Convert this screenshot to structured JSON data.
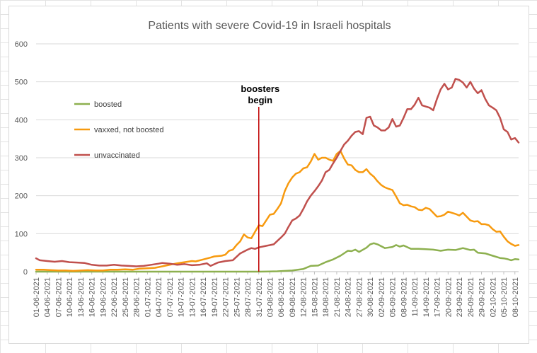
{
  "colors": {
    "boosted": "#8db04f",
    "vaxxed": "#f79a0f",
    "unvaccinated": "#c0504d",
    "annotation_line": "#c00000",
    "gridline": "#d9d9d9",
    "axis": "#bfbfbf"
  },
  "chart_data": {
    "type": "line",
    "title": "Patients with severe Covid-19 in Israeli hospitals",
    "xlabel": "",
    "ylabel": "",
    "ylim": [
      0,
      600
    ],
    "yticks": [
      0,
      100,
      200,
      300,
      400,
      500,
      600
    ],
    "grid": "horizontal",
    "legend_placement": "left-inside",
    "x_start": "01-06-2021",
    "x_end": "09-10-2021",
    "x_tick_labels": [
      "01-06-2021",
      "04-06-2021",
      "07-06-2021",
      "10-06-2021",
      "13-06-2021",
      "16-06-2021",
      "19-06-2021",
      "22-06-2021",
      "25-06-2021",
      "28-06-2021",
      "01-07-2021",
      "04-07-2021",
      "07-07-2021",
      "10-07-2021",
      "13-07-2021",
      "16-07-2021",
      "19-07-2021",
      "22-07-2021",
      "25-07-2021",
      "28-07-2021",
      "31-07-2021",
      "03-08-2021",
      "06-08-2021",
      "09-08-2021",
      "12-08-2021",
      "15-08-2021",
      "18-08-2021",
      "21-08-2021",
      "24-08-2021",
      "27-08-2021",
      "30-08-2021",
      "02-09-2021",
      "05-09-2021",
      "08-09-2021",
      "11-09-2021",
      "14-09-2021",
      "17-09-2021",
      "20-09-2021",
      "23-09-2021",
      "26-09-2021",
      "29-09-2021",
      "02-10-2021",
      "05-10-2021",
      "08-10-2021"
    ],
    "annotation": {
      "date": "31-07-2021",
      "text_line1": "boosters",
      "text_line2": "begin"
    },
    "series": [
      {
        "name": "boosted",
        "points": [
          [
            "01-06-2021",
            0
          ],
          [
            "31-07-2021",
            0
          ],
          [
            "05-08-2021",
            1
          ],
          [
            "09-08-2021",
            3
          ],
          [
            "12-08-2021",
            7
          ],
          [
            "14-08-2021",
            15
          ],
          [
            "16-08-2021",
            16
          ],
          [
            "18-08-2021",
            25
          ],
          [
            "20-08-2021",
            32
          ],
          [
            "22-08-2021",
            42
          ],
          [
            "24-08-2021",
            55
          ],
          [
            "25-08-2021",
            54
          ],
          [
            "26-08-2021",
            58
          ],
          [
            "27-08-2021",
            52
          ],
          [
            "29-08-2021",
            63
          ],
          [
            "30-08-2021",
            72
          ],
          [
            "31-08-2021",
            75
          ],
          [
            "01-09-2021",
            72
          ],
          [
            "03-09-2021",
            62
          ],
          [
            "05-09-2021",
            65
          ],
          [
            "06-09-2021",
            70
          ],
          [
            "07-09-2021",
            66
          ],
          [
            "08-09-2021",
            69
          ],
          [
            "10-09-2021",
            60
          ],
          [
            "12-09-2021",
            60
          ],
          [
            "14-09-2021",
            59
          ],
          [
            "16-09-2021",
            58
          ],
          [
            "18-09-2021",
            55
          ],
          [
            "20-09-2021",
            58
          ],
          [
            "22-09-2021",
            57
          ],
          [
            "24-09-2021",
            62
          ],
          [
            "26-09-2021",
            57
          ],
          [
            "27-09-2021",
            58
          ],
          [
            "28-09-2021",
            50
          ],
          [
            "30-09-2021",
            48
          ],
          [
            "02-10-2021",
            42
          ],
          [
            "04-10-2021",
            36
          ],
          [
            "05-10-2021",
            35
          ],
          [
            "06-10-2021",
            33
          ],
          [
            "07-10-2021",
            30
          ],
          [
            "08-10-2021",
            33
          ],
          [
            "09-10-2021",
            32
          ]
        ]
      },
      {
        "name": "vaxxed, not boosted",
        "points": [
          [
            "01-06-2021",
            5
          ],
          [
            "03-06-2021",
            5
          ],
          [
            "05-06-2021",
            4
          ],
          [
            "07-06-2021",
            3
          ],
          [
            "09-06-2021",
            3
          ],
          [
            "11-06-2021",
            2
          ],
          [
            "13-06-2021",
            3
          ],
          [
            "15-06-2021",
            4
          ],
          [
            "17-06-2021",
            3
          ],
          [
            "19-06-2021",
            3
          ],
          [
            "21-06-2021",
            5
          ],
          [
            "23-06-2021",
            5
          ],
          [
            "25-06-2021",
            6
          ],
          [
            "27-06-2021",
            5
          ],
          [
            "29-06-2021",
            8
          ],
          [
            "01-07-2021",
            9
          ],
          [
            "03-07-2021",
            10
          ],
          [
            "05-07-2021",
            14
          ],
          [
            "07-07-2021",
            18
          ],
          [
            "09-07-2021",
            22
          ],
          [
            "11-07-2021",
            25
          ],
          [
            "13-07-2021",
            28
          ],
          [
            "14-07-2021",
            27
          ],
          [
            "16-07-2021",
            32
          ],
          [
            "18-07-2021",
            37
          ],
          [
            "19-07-2021",
            40
          ],
          [
            "21-07-2021",
            42
          ],
          [
            "22-07-2021",
            45
          ],
          [
            "23-07-2021",
            55
          ],
          [
            "24-07-2021",
            58
          ],
          [
            "25-07-2021",
            70
          ],
          [
            "26-07-2021",
            80
          ],
          [
            "27-07-2021",
            98
          ],
          [
            "28-07-2021",
            90
          ],
          [
            "29-07-2021",
            88
          ],
          [
            "30-07-2021",
            105
          ],
          [
            "31-07-2021",
            122
          ],
          [
            "01-08-2021",
            120
          ],
          [
            "02-08-2021",
            135
          ],
          [
            "03-08-2021",
            150
          ],
          [
            "04-08-2021",
            152
          ],
          [
            "05-08-2021",
            165
          ],
          [
            "06-08-2021",
            180
          ],
          [
            "07-08-2021",
            212
          ],
          [
            "08-08-2021",
            233
          ],
          [
            "09-08-2021",
            248
          ],
          [
            "10-08-2021",
            258
          ],
          [
            "11-08-2021",
            262
          ],
          [
            "12-08-2021",
            272
          ],
          [
            "13-08-2021",
            275
          ],
          [
            "14-08-2021",
            290
          ],
          [
            "15-08-2021",
            310
          ],
          [
            "16-08-2021",
            295
          ],
          [
            "17-08-2021",
            300
          ],
          [
            "18-08-2021",
            300
          ],
          [
            "19-08-2021",
            295
          ],
          [
            "20-08-2021",
            292
          ],
          [
            "21-08-2021",
            310
          ],
          [
            "22-08-2021",
            318
          ],
          [
            "23-08-2021",
            298
          ],
          [
            "24-08-2021",
            282
          ],
          [
            "25-08-2021",
            280
          ],
          [
            "26-08-2021",
            268
          ],
          [
            "27-08-2021",
            262
          ],
          [
            "28-08-2021",
            262
          ],
          [
            "29-08-2021",
            270
          ],
          [
            "30-08-2021",
            258
          ],
          [
            "31-08-2021",
            250
          ],
          [
            "01-09-2021",
            238
          ],
          [
            "02-09-2021",
            228
          ],
          [
            "03-09-2021",
            222
          ],
          [
            "04-09-2021",
            218
          ],
          [
            "05-09-2021",
            215
          ],
          [
            "06-09-2021",
            198
          ],
          [
            "07-09-2021",
            180
          ],
          [
            "08-09-2021",
            175
          ],
          [
            "09-09-2021",
            176
          ],
          [
            "10-09-2021",
            172
          ],
          [
            "11-09-2021",
            170
          ],
          [
            "12-09-2021",
            163
          ],
          [
            "13-09-2021",
            162
          ],
          [
            "14-09-2021",
            168
          ],
          [
            "15-09-2021",
            165
          ],
          [
            "16-09-2021",
            155
          ],
          [
            "17-09-2021",
            145
          ],
          [
            "18-09-2021",
            146
          ],
          [
            "19-09-2021",
            150
          ],
          [
            "20-09-2021",
            158
          ],
          [
            "21-09-2021",
            155
          ],
          [
            "22-09-2021",
            152
          ],
          [
            "23-09-2021",
            148
          ],
          [
            "24-09-2021",
            155
          ],
          [
            "25-09-2021",
            145
          ],
          [
            "26-09-2021",
            135
          ],
          [
            "27-09-2021",
            132
          ],
          [
            "28-09-2021",
            133
          ],
          [
            "29-09-2021",
            125
          ],
          [
            "30-09-2021",
            125
          ],
          [
            "01-10-2021",
            122
          ],
          [
            "02-10-2021",
            112
          ],
          [
            "03-10-2021",
            105
          ],
          [
            "04-10-2021",
            106
          ],
          [
            "05-10-2021",
            92
          ],
          [
            "06-10-2021",
            80
          ],
          [
            "07-10-2021",
            73
          ],
          [
            "08-10-2021",
            68
          ],
          [
            "09-10-2021",
            70
          ]
        ]
      },
      {
        "name": "unvaccinated",
        "points": [
          [
            "01-06-2021",
            35
          ],
          [
            "02-06-2021",
            30
          ],
          [
            "04-06-2021",
            28
          ],
          [
            "06-06-2021",
            26
          ],
          [
            "08-06-2021",
            28
          ],
          [
            "10-06-2021",
            25
          ],
          [
            "12-06-2021",
            24
          ],
          [
            "14-06-2021",
            23
          ],
          [
            "16-06-2021",
            18
          ],
          [
            "18-06-2021",
            16
          ],
          [
            "20-06-2021",
            16
          ],
          [
            "22-06-2021",
            18
          ],
          [
            "24-06-2021",
            16
          ],
          [
            "26-06-2021",
            15
          ],
          [
            "28-06-2021",
            14
          ],
          [
            "30-06-2021",
            15
          ],
          [
            "02-07-2021",
            18
          ],
          [
            "04-07-2021",
            21
          ],
          [
            "05-07-2021",
            23
          ],
          [
            "07-07-2021",
            21
          ],
          [
            "09-07-2021",
            18
          ],
          [
            "11-07-2021",
            20
          ],
          [
            "13-07-2021",
            17
          ],
          [
            "15-07-2021",
            18
          ],
          [
            "17-07-2021",
            22
          ],
          [
            "18-07-2021",
            15
          ],
          [
            "20-07-2021",
            24
          ],
          [
            "22-07-2021",
            28
          ],
          [
            "24-07-2021",
            30
          ],
          [
            "26-07-2021",
            48
          ],
          [
            "28-07-2021",
            58
          ],
          [
            "29-07-2021",
            62
          ],
          [
            "30-07-2021",
            60
          ],
          [
            "31-07-2021",
            64
          ],
          [
            "02-08-2021",
            68
          ],
          [
            "04-08-2021",
            72
          ],
          [
            "06-08-2021",
            90
          ],
          [
            "07-08-2021",
            100
          ],
          [
            "08-08-2021",
            118
          ],
          [
            "09-08-2021",
            135
          ],
          [
            "10-08-2021",
            140
          ],
          [
            "11-08-2021",
            148
          ],
          [
            "12-08-2021",
            165
          ],
          [
            "13-08-2021",
            185
          ],
          [
            "14-08-2021",
            200
          ],
          [
            "15-08-2021",
            212
          ],
          [
            "16-08-2021",
            225
          ],
          [
            "17-08-2021",
            240
          ],
          [
            "18-08-2021",
            262
          ],
          [
            "19-08-2021",
            268
          ],
          [
            "20-08-2021",
            285
          ],
          [
            "21-08-2021",
            300
          ],
          [
            "22-08-2021",
            318
          ],
          [
            "23-08-2021",
            335
          ],
          [
            "24-08-2021",
            345
          ],
          [
            "25-08-2021",
            358
          ],
          [
            "26-08-2021",
            368
          ],
          [
            "27-08-2021",
            370
          ],
          [
            "28-08-2021",
            362
          ],
          [
            "29-08-2021",
            405
          ],
          [
            "30-08-2021",
            408
          ],
          [
            "31-08-2021",
            385
          ],
          [
            "01-09-2021",
            380
          ],
          [
            "02-09-2021",
            372
          ],
          [
            "03-09-2021",
            372
          ],
          [
            "04-09-2021",
            380
          ],
          [
            "05-09-2021",
            402
          ],
          [
            "06-09-2021",
            382
          ],
          [
            "07-09-2021",
            385
          ],
          [
            "08-09-2021",
            405
          ],
          [
            "09-09-2021",
            428
          ],
          [
            "10-09-2021",
            428
          ],
          [
            "11-09-2021",
            440
          ],
          [
            "12-09-2021",
            458
          ],
          [
            "13-09-2021",
            438
          ],
          [
            "14-09-2021",
            435
          ],
          [
            "15-09-2021",
            432
          ],
          [
            "16-09-2021",
            425
          ],
          [
            "17-09-2021",
            455
          ],
          [
            "18-09-2021",
            480
          ],
          [
            "19-09-2021",
            495
          ],
          [
            "20-09-2021",
            480
          ],
          [
            "21-09-2021",
            485
          ],
          [
            "22-09-2021",
            508
          ],
          [
            "23-09-2021",
            505
          ],
          [
            "24-09-2021",
            498
          ],
          [
            "25-09-2021",
            485
          ],
          [
            "26-09-2021",
            500
          ],
          [
            "27-09-2021",
            482
          ],
          [
            "28-09-2021",
            470
          ],
          [
            "29-09-2021",
            478
          ],
          [
            "30-09-2021",
            455
          ],
          [
            "01-10-2021",
            438
          ],
          [
            "02-10-2021",
            432
          ],
          [
            "03-10-2021",
            425
          ],
          [
            "04-10-2021",
            405
          ],
          [
            "05-10-2021",
            375
          ],
          [
            "06-10-2021",
            368
          ],
          [
            "07-10-2021",
            348
          ],
          [
            "08-10-2021",
            352
          ],
          [
            "09-10-2021",
            340
          ]
        ]
      }
    ]
  }
}
